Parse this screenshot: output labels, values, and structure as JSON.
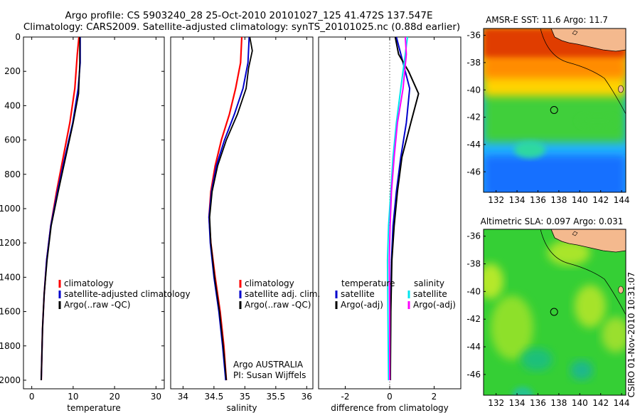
{
  "header": {
    "line1": "Argo profile: CS 5903240_28 25-Oct-2010 20101027_125 41.472S 137.547E",
    "line2": "Climatology: CARS2009. Satellite-adjusted climatology: synTS_20101025.nc (0.88d earlier)"
  },
  "side_stamp": "CSIRO 01-Nov-2010 10:31:07",
  "colors": {
    "climatology": "#ff0000",
    "satellite": "#0000cc",
    "argo": "#000000",
    "satellite_salinity": "#00e5ee",
    "argo_salinity": "#ff00ff",
    "land": "#f4b98e",
    "sst_warm": "#c81e00",
    "sla_green": "#3ddc3d"
  },
  "chart_data": [
    {
      "id": "temperature",
      "type": "line",
      "xlabel": "temperature",
      "ylabel": "",
      "xlim": [
        -2,
        32
      ],
      "ylim": [
        2050,
        0
      ],
      "xticks": [
        0,
        10,
        20,
        30
      ],
      "yticks": [
        0,
        200,
        400,
        600,
        800,
        1000,
        1200,
        1400,
        1600,
        1800,
        2000
      ],
      "legend": [
        "climatology",
        "satellite-adjusted climatology",
        "Argo(..raw -QC)"
      ],
      "series": [
        {
          "name": "climatology",
          "points": [
            [
              11.4,
              0
            ],
            [
              11.0,
              100
            ],
            [
              10.4,
              300
            ],
            [
              9.2,
              500
            ],
            [
              7.6,
              700
            ],
            [
              6.0,
              900
            ],
            [
              4.6,
              1100
            ],
            [
              3.6,
              1300
            ],
            [
              3.0,
              1500
            ],
            [
              2.6,
              1700
            ],
            [
              2.4,
              1900
            ],
            [
              2.3,
              2000
            ]
          ]
        },
        {
          "name": "satellite-adjusted climatology",
          "points": [
            [
              11.7,
              0
            ],
            [
              11.7,
              150
            ],
            [
              11.2,
              300
            ],
            [
              9.9,
              500
            ],
            [
              8.0,
              700
            ],
            [
              6.2,
              900
            ],
            [
              4.6,
              1100
            ],
            [
              3.6,
              1300
            ],
            [
              3.0,
              1500
            ],
            [
              2.6,
              1700
            ],
            [
              2.4,
              1900
            ],
            [
              2.3,
              2000
            ]
          ]
        },
        {
          "name": "Argo(..raw -QC)",
          "points": [
            [
              11.6,
              0
            ],
            [
              11.6,
              150
            ],
            [
              11.3,
              330
            ],
            [
              10.0,
              500
            ],
            [
              8.2,
              700
            ],
            [
              6.4,
              900
            ],
            [
              4.7,
              1100
            ],
            [
              3.7,
              1300
            ],
            [
              3.0,
              1500
            ],
            [
              2.6,
              1700
            ],
            [
              2.4,
              1900
            ],
            [
              2.3,
              2000
            ]
          ]
        }
      ]
    },
    {
      "id": "salinity",
      "type": "line",
      "xlabel": "salinity",
      "ylabel": "",
      "xlim": [
        33.8,
        36.1
      ],
      "ylim": [
        2050,
        0
      ],
      "xticks": [
        34,
        34.5,
        35,
        35.5,
        36
      ],
      "xtick_labels": [
        "34",
        "34.5",
        "35",
        "35.5",
        "36"
      ],
      "legend": [
        "climatology",
        "satellite adj. clim.",
        "Argo(..raw -QC)"
      ],
      "annotation": [
        "Argo AUSTRALIA",
        "PI: Susan Wijffels"
      ],
      "series": [
        {
          "name": "climatology",
          "points": [
            [
              34.95,
              0
            ],
            [
              34.93,
              150
            ],
            [
              34.85,
              300
            ],
            [
              34.75,
              450
            ],
            [
              34.62,
              600
            ],
            [
              34.52,
              750
            ],
            [
              34.45,
              900
            ],
            [
              34.42,
              1050
            ],
            [
              34.45,
              1200
            ],
            [
              34.52,
              1400
            ],
            [
              34.6,
              1600
            ],
            [
              34.66,
              1800
            ],
            [
              34.7,
              2000
            ]
          ]
        },
        {
          "name": "satellite adj. clim.",
          "points": [
            [
              35.07,
              0
            ],
            [
              35.05,
              150
            ],
            [
              34.97,
              300
            ],
            [
              34.83,
              450
            ],
            [
              34.67,
              600
            ],
            [
              34.54,
              750
            ],
            [
              34.46,
              900
            ],
            [
              34.42,
              1050
            ],
            [
              34.44,
              1200
            ],
            [
              34.5,
              1400
            ],
            [
              34.58,
              1600
            ],
            [
              34.64,
              1800
            ],
            [
              34.69,
              2000
            ]
          ]
        },
        {
          "name": "Argo(..raw -QC)",
          "points": [
            [
              35.08,
              0
            ],
            [
              35.12,
              80
            ],
            [
              35.06,
              180
            ],
            [
              35.02,
              300
            ],
            [
              34.88,
              450
            ],
            [
              34.7,
              600
            ],
            [
              34.56,
              750
            ],
            [
              34.47,
              900
            ],
            [
              34.43,
              1050
            ],
            [
              34.45,
              1200
            ],
            [
              34.51,
              1400
            ],
            [
              34.59,
              1600
            ],
            [
              34.65,
              1800
            ],
            [
              34.7,
              2000
            ]
          ]
        }
      ]
    },
    {
      "id": "difference",
      "type": "line",
      "xlabel": "difference from climatology",
      "ylabel": "",
      "xlim": [
        -3.2,
        3.2
      ],
      "ylim": [
        2050,
        0
      ],
      "xticks": [
        -2,
        0,
        2
      ],
      "legend_left_heading": "temperature",
      "legend_right_heading": "salinity",
      "legend": [
        "satellite",
        "Argo(-adj)",
        "satellite",
        "Argo(-adj)"
      ],
      "series": [
        {
          "name": "temperature satellite",
          "points": [
            [
              0.3,
              0
            ],
            [
              0.6,
              150
            ],
            [
              0.9,
              300
            ],
            [
              0.75,
              500
            ],
            [
              0.5,
              700
            ],
            [
              0.3,
              900
            ],
            [
              0.15,
              1100
            ],
            [
              0.08,
              1300
            ],
            [
              0.04,
              1600
            ],
            [
              0.02,
              2000
            ]
          ]
        },
        {
          "name": "temperature Argo(-adj)",
          "points": [
            [
              0.25,
              0
            ],
            [
              0.4,
              100
            ],
            [
              0.85,
              200
            ],
            [
              1.3,
              330
            ],
            [
              0.95,
              500
            ],
            [
              0.55,
              700
            ],
            [
              0.35,
              900
            ],
            [
              0.2,
              1100
            ],
            [
              0.1,
              1300
            ],
            [
              0.05,
              1600
            ],
            [
              0.03,
              2000
            ]
          ]
        },
        {
          "name": "salinity satellite",
          "points": [
            [
              0.8,
              0
            ],
            [
              0.7,
              100
            ],
            [
              0.5,
              300
            ],
            [
              0.3,
              500
            ],
            [
              0.15,
              700
            ],
            [
              0.05,
              900
            ],
            [
              -0.05,
              1100
            ],
            [
              -0.1,
              1300
            ],
            [
              -0.08,
              1600
            ],
            [
              -0.05,
              2000
            ]
          ]
        },
        {
          "name": "salinity Argo(-adj)",
          "points": [
            [
              0.7,
              0
            ],
            [
              0.75,
              100
            ],
            [
              0.6,
              300
            ],
            [
              0.35,
              500
            ],
            [
              0.2,
              700
            ],
            [
              0.08,
              900
            ],
            [
              0.02,
              1100
            ],
            [
              -0.02,
              1300
            ],
            [
              0.0,
              1600
            ],
            [
              0.0,
              2000
            ]
          ]
        }
      ]
    },
    {
      "id": "sst-map",
      "type": "heatmap",
      "title": "AMSR-E SST: 11.6 Argo: 11.7",
      "xlim": [
        130.8,
        144.4
      ],
      "ylim": [
        -47.5,
        -35.5
      ],
      "xticks": [
        132,
        134,
        136,
        138,
        140,
        142,
        144
      ],
      "yticks": [
        -36,
        -38,
        -40,
        -42,
        -44,
        -46
      ],
      "marker": [
        137.547,
        -41.472
      ]
    },
    {
      "id": "sla-map",
      "type": "heatmap",
      "title": "Altimetric SLA: 0.097 Argo: 0.031",
      "xlim": [
        130.8,
        144.4
      ],
      "ylim": [
        -47.5,
        -35.5
      ],
      "xticks": [
        132,
        134,
        136,
        138,
        140,
        142,
        144
      ],
      "yticks": [
        -36,
        -38,
        -40,
        -42,
        -44,
        -46
      ],
      "marker": [
        137.547,
        -41.472
      ]
    }
  ]
}
